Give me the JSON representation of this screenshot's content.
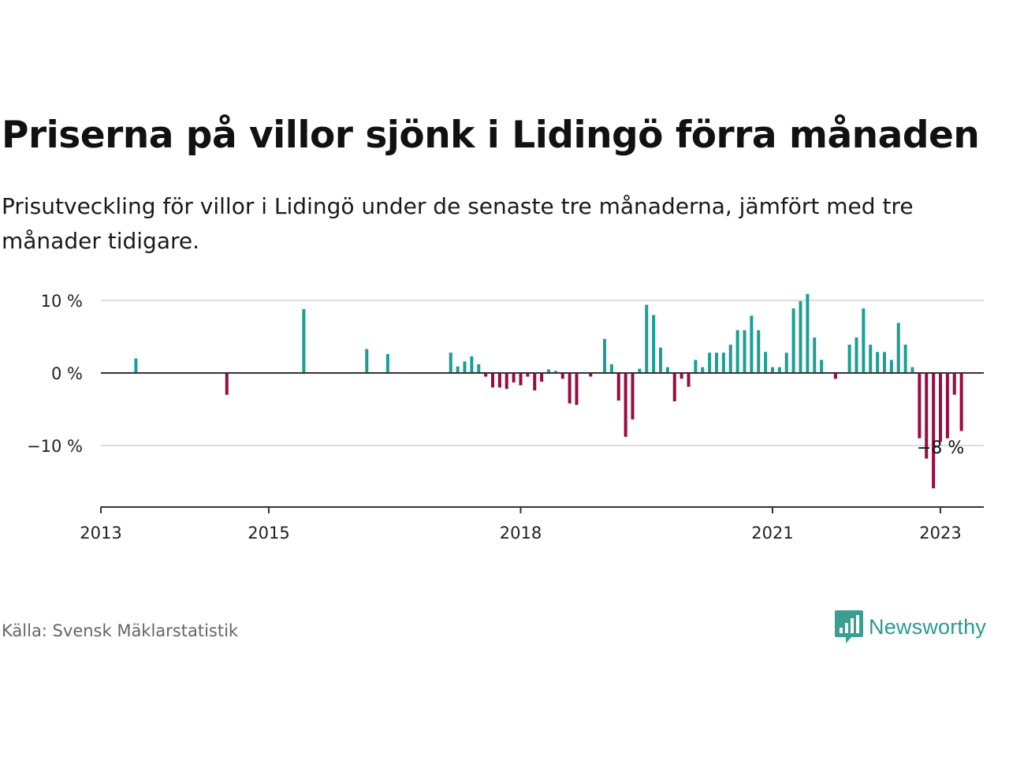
{
  "title": "Priserna på villor sjönk i Lidingö förra månaden",
  "subtitle": "Prisutveckling för villor i Lidingö under de senaste tre månaderna, jämfört med tre månader tidigare.",
  "source": "Källa: Svensk Mäklarstatistik",
  "brand": {
    "name": "Newsworthy",
    "icon": "newsworthy-logo-icon"
  },
  "colors": {
    "positive": "#1a9e96",
    "negative": "#9c0a3f",
    "grid": "#dddddd",
    "axis": "#333333"
  },
  "chart_data": {
    "type": "bar",
    "title": "Priserna på villor sjönk i Lidingö förra månaden",
    "xlabel": "",
    "ylabel": "",
    "x_range": [
      "2013-01",
      "2023-06"
    ],
    "ylim": [
      -18,
      10
    ],
    "y_ticks": [
      {
        "value": 10,
        "label": "10 %"
      },
      {
        "value": 0,
        "label": "0 %"
      },
      {
        "value": -10,
        "label": "−10 %"
      }
    ],
    "x_ticks": [
      {
        "date": "2013-01",
        "label": "2013"
      },
      {
        "date": "2015-01",
        "label": "2015"
      },
      {
        "date": "2018-01",
        "label": "2018"
      },
      {
        "date": "2021-01",
        "label": "2021"
      },
      {
        "date": "2023-01",
        "label": "2023"
      }
    ],
    "grid": true,
    "legend": "none",
    "annotation": {
      "date": "2023-01",
      "value": -8,
      "label": "−8 %"
    },
    "series": [
      {
        "points": [
          {
            "date": "2013-06",
            "value": 2
          },
          {
            "date": "2014-07",
            "value": -3
          },
          {
            "date": "2015-06",
            "value": 8.8
          },
          {
            "date": "2016-03",
            "value": 3.3
          },
          {
            "date": "2016-06",
            "value": 2.6
          },
          {
            "date": "2017-03",
            "value": 2.8
          },
          {
            "date": "2017-04",
            "value": 0.9
          },
          {
            "date": "2017-05",
            "value": 1.6
          },
          {
            "date": "2017-06",
            "value": 2.3
          },
          {
            "date": "2017-07",
            "value": 1.2
          },
          {
            "date": "2017-08",
            "value": -0.5
          },
          {
            "date": "2017-09",
            "value": -2
          },
          {
            "date": "2017-10",
            "value": -2
          },
          {
            "date": "2017-11",
            "value": -2.2
          },
          {
            "date": "2017-12",
            "value": -1.3
          },
          {
            "date": "2018-01",
            "value": -1.7
          },
          {
            "date": "2018-02",
            "value": -0.5
          },
          {
            "date": "2018-03",
            "value": -2.4
          },
          {
            "date": "2018-04",
            "value": -1.2
          },
          {
            "date": "2018-05",
            "value": 0.5
          },
          {
            "date": "2018-06",
            "value": 0.3
          },
          {
            "date": "2018-07",
            "value": -0.8
          },
          {
            "date": "2018-08",
            "value": -4.2
          },
          {
            "date": "2018-09",
            "value": -4.4
          },
          {
            "date": "2018-11",
            "value": -0.5
          },
          {
            "date": "2019-01",
            "value": 4.7
          },
          {
            "date": "2019-02",
            "value": 1.2
          },
          {
            "date": "2019-03",
            "value": -3.8
          },
          {
            "date": "2019-04",
            "value": -8.8
          },
          {
            "date": "2019-05",
            "value": -6.4
          },
          {
            "date": "2019-06",
            "value": 0.6
          },
          {
            "date": "2019-07",
            "value": 9.4
          },
          {
            "date": "2019-08",
            "value": 8
          },
          {
            "date": "2019-09",
            "value": 3.5
          },
          {
            "date": "2019-10",
            "value": 0.8
          },
          {
            "date": "2019-11",
            "value": -3.9
          },
          {
            "date": "2019-12",
            "value": -0.8
          },
          {
            "date": "2020-01",
            "value": -1.9
          },
          {
            "date": "2020-02",
            "value": 1.8
          },
          {
            "date": "2020-03",
            "value": 0.8
          },
          {
            "date": "2020-04",
            "value": 2.8
          },
          {
            "date": "2020-05",
            "value": 2.8
          },
          {
            "date": "2020-06",
            "value": 2.8
          },
          {
            "date": "2020-07",
            "value": 3.9
          },
          {
            "date": "2020-08",
            "value": 5.9
          },
          {
            "date": "2020-09",
            "value": 5.9
          },
          {
            "date": "2020-10",
            "value": 7.9
          },
          {
            "date": "2020-11",
            "value": 5.9
          },
          {
            "date": "2020-12",
            "value": 2.9
          },
          {
            "date": "2021-01",
            "value": 0.8
          },
          {
            "date": "2021-02",
            "value": 0.8
          },
          {
            "date": "2021-03",
            "value": 2.8
          },
          {
            "date": "2021-04",
            "value": 8.9
          },
          {
            "date": "2021-05",
            "value": 9.9
          },
          {
            "date": "2021-06",
            "value": 10.9
          },
          {
            "date": "2021-07",
            "value": 4.9
          },
          {
            "date": "2021-08",
            "value": 1.8
          },
          {
            "date": "2021-10",
            "value": -0.8
          },
          {
            "date": "2021-12",
            "value": 3.9
          },
          {
            "date": "2022-01",
            "value": 4.9
          },
          {
            "date": "2022-02",
            "value": 8.9
          },
          {
            "date": "2022-03",
            "value": 3.9
          },
          {
            "date": "2022-04",
            "value": 2.9
          },
          {
            "date": "2022-05",
            "value": 2.9
          },
          {
            "date": "2022-06",
            "value": 1.8
          },
          {
            "date": "2022-07",
            "value": 6.9
          },
          {
            "date": "2022-08",
            "value": 3.9
          },
          {
            "date": "2022-09",
            "value": 0.8
          },
          {
            "date": "2022-10",
            "value": -9
          },
          {
            "date": "2022-11",
            "value": -11.8
          },
          {
            "date": "2022-12",
            "value": -15.9
          },
          {
            "date": "2023-01",
            "value": -9.5
          },
          {
            "date": "2023-02",
            "value": -9
          },
          {
            "date": "2023-03",
            "value": -3
          },
          {
            "date": "2023-04",
            "value": -8
          }
        ]
      }
    ]
  }
}
